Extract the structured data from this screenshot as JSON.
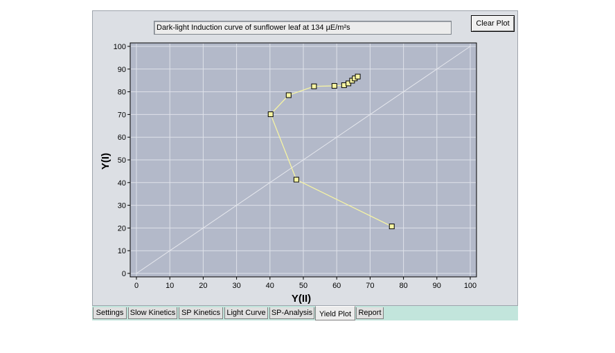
{
  "plot": {
    "title": "Dark-light Induction curve of sunflower leaf at 134 µE/m²s",
    "clear_label": "Clear Plot"
  },
  "chart_data": {
    "type": "scatter",
    "xlabel": "Y(II)",
    "ylabel": "Y(I)",
    "xlim": [
      0,
      100
    ],
    "ylim": [
      0,
      100
    ],
    "x_ticks": [
      "0",
      "10",
      "20",
      "30",
      "40",
      "50",
      "60",
      "70",
      "80",
      "90",
      "100"
    ],
    "y_ticks": [
      "0",
      "10",
      "20",
      "30",
      "40",
      "50",
      "60",
      "70",
      "80",
      "90",
      "100"
    ],
    "grid": true,
    "diagonal_reference": true,
    "series": [
      {
        "points": [
          {
            "x": 76.5,
            "y": 20.7
          },
          {
            "x": 47.9,
            "y": 41.3
          },
          {
            "x": 40.2,
            "y": 70.1
          },
          {
            "x": 45.6,
            "y": 78.5
          },
          {
            "x": 53.2,
            "y": 82.4
          },
          {
            "x": 59.3,
            "y": 82.6
          },
          {
            "x": 62.2,
            "y": 82.9
          },
          {
            "x": 63.5,
            "y": 83.7
          },
          {
            "x": 64.6,
            "y": 84.9
          },
          {
            "x": 65.4,
            "y": 85.9
          },
          {
            "x": 66.3,
            "y": 86.7
          }
        ]
      }
    ],
    "colors": {
      "plot_bg": "#b3b9c9",
      "grid": "#dfe2ea",
      "line": "#f7f5a3",
      "marker_fill": "#f7f5a3",
      "marker_stroke": "#000000"
    }
  },
  "tabs": [
    {
      "label": "Settings",
      "active": false
    },
    {
      "label": "Slow Kinetics",
      "active": false
    },
    {
      "label": "SP Kinetics",
      "active": false
    },
    {
      "label": "Light Curve",
      "active": false
    },
    {
      "label": "SP-Analysis",
      "active": false
    },
    {
      "label": "Yield Plot",
      "active": true
    },
    {
      "label": "Report",
      "active": false
    }
  ]
}
